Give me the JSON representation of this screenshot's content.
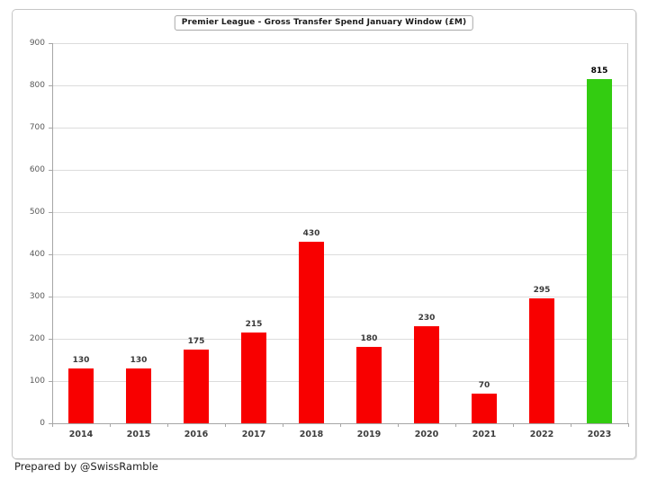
{
  "page": {
    "footer": "Prepared by @SwissRamble"
  },
  "chart_data": {
    "type": "bar",
    "title": "Premier League - Gross Transfer Spend January Window (£M)",
    "categories": [
      "2014",
      "2015",
      "2016",
      "2017",
      "2018",
      "2019",
      "2020",
      "2021",
      "2022",
      "2023"
    ],
    "values": [
      130,
      130,
      175,
      215,
      430,
      180,
      230,
      70,
      295,
      815
    ],
    "bar_colors": [
      "#F80000",
      "#F80000",
      "#F80000",
      "#F80000",
      "#F80000",
      "#F80000",
      "#F80000",
      "#F80000",
      "#F80000",
      "#33CC11"
    ],
    "highlight_index": 9,
    "xlabel": "",
    "ylabel": "",
    "ylim": [
      0,
      900
    ],
    "ytick_step": 100,
    "grid": true,
    "legend": "none",
    "colors": {
      "default_bar": "#F80000",
      "highlight_bar": "#33CC11",
      "gridline": "#DCDCDC",
      "axis": "#A6A6A6"
    }
  }
}
